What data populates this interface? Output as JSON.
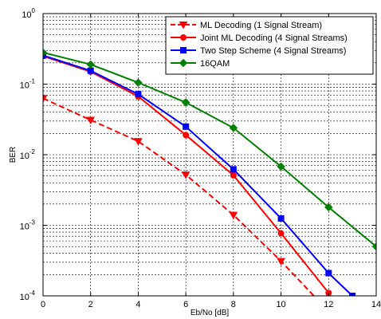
{
  "chart_data": {
    "type": "line",
    "xlabel": "Eb/No [dB]",
    "ylabel": "BER",
    "xlim": [
      0,
      14
    ],
    "ylim": [
      0.0001,
      1
    ],
    "yscale": "log",
    "grid": true,
    "legend_position": "top-right",
    "x_ticks": [
      0,
      2,
      4,
      6,
      8,
      10,
      12,
      14
    ],
    "y_ticks": [
      {
        "base": "10",
        "exp": "0"
      },
      {
        "base": "10",
        "exp": "-1"
      },
      {
        "base": "10",
        "exp": "-2"
      },
      {
        "base": "10",
        "exp": "-3"
      },
      {
        "base": "10",
        "exp": "-4"
      }
    ],
    "series": [
      {
        "name": "ML Decoding (1 Signal Stream)",
        "color": "#ff0000",
        "dash": "dashed",
        "marker": "triangle-down",
        "x": [
          0,
          2,
          4,
          6,
          8,
          10,
          12
        ],
        "y": [
          0.063,
          0.031,
          0.0155,
          0.0052,
          0.0014,
          0.00031,
          6e-05
        ]
      },
      {
        "name": "Joint ML Decoding (4 Signal Streams)",
        "color": "#ff0000",
        "dash": "solid",
        "marker": "circle",
        "x": [
          0,
          2,
          4,
          6,
          8,
          10,
          12
        ],
        "y": [
          0.25,
          0.15,
          0.067,
          0.019,
          0.0051,
          0.00077,
          0.00011
        ]
      },
      {
        "name": "Two Step Scheme (4 Signal Streams)",
        "color": "#0000ff",
        "dash": "solid",
        "marker": "square",
        "x": [
          0,
          2,
          4,
          6,
          8,
          10,
          12,
          13
        ],
        "y": [
          0.255,
          0.155,
          0.072,
          0.025,
          0.0062,
          0.00125,
          0.00021,
          0.0001
        ]
      },
      {
        "name": "16QAM",
        "color": "#008000",
        "dash": "solid",
        "marker": "diamond",
        "x": [
          0,
          2,
          4,
          6,
          8,
          10,
          12,
          14
        ],
        "y": [
          0.28,
          0.19,
          0.105,
          0.055,
          0.024,
          0.0068,
          0.0018,
          0.0005
        ]
      }
    ]
  }
}
